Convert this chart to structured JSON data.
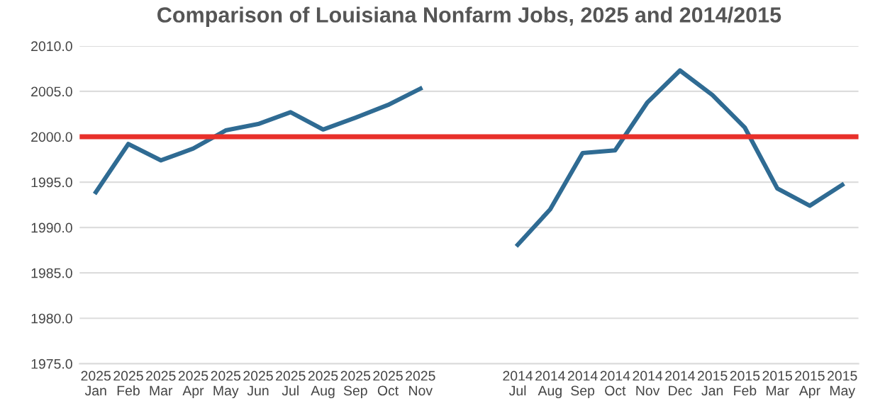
{
  "chart_data": {
    "type": "line",
    "title": "Comparison of Louisiana Nonfarm Jobs, 2025 and 2014/2015",
    "categories": [
      "2025\nJan",
      "2025\nFeb",
      "2025\nMar",
      "2025\nApr",
      "2025\nMay",
      "2025\nJun",
      "2025\nJul",
      "2025\nAug",
      "2025\nSep",
      "2025\nOct",
      "2025\nNov",
      null,
      null,
      "2014\nJul",
      "2014\nAug",
      "2014\nSep",
      "2014\nOct",
      "2014\nNov",
      "2014\nDec",
      "2015\nJan",
      "2015\nFeb",
      "2015\nMar",
      "2015\nApr",
      "2015\nMay"
    ],
    "series": [
      {
        "color": "#2f6b93",
        "values": [
          1993.9,
          1999.2,
          1997.4,
          1998.7,
          2000.7,
          2001.4,
          2002.7,
          2000.8,
          2002.1,
          2003.5,
          2005.3,
          null,
          null,
          1988.1,
          1992.0,
          1998.2,
          1998.5,
          2003.8,
          2007.3,
          2004.6,
          2001.0,
          1994.3,
          1992.4,
          1994.7
        ]
      }
    ],
    "ylim": [
      1975,
      2010
    ],
    "yticks": [
      {
        "value": 1975,
        "label": "1975.0"
      },
      {
        "value": 1980,
        "label": "1980.0"
      },
      {
        "value": 1985,
        "label": "1985.0"
      },
      {
        "value": 1990,
        "label": "1990.0"
      },
      {
        "value": 1995,
        "label": "1995.0"
      },
      {
        "value": 2000,
        "label": "2000.0"
      },
      {
        "value": 2005,
        "label": "2005.0"
      },
      {
        "value": 2010,
        "label": "2010.0"
      }
    ],
    "ref_lines": [
      {
        "axis": "y",
        "value": 2000,
        "label": null,
        "color": "#e8302a"
      }
    ],
    "grid": "y",
    "marker": "none",
    "line_style": "solid"
  }
}
